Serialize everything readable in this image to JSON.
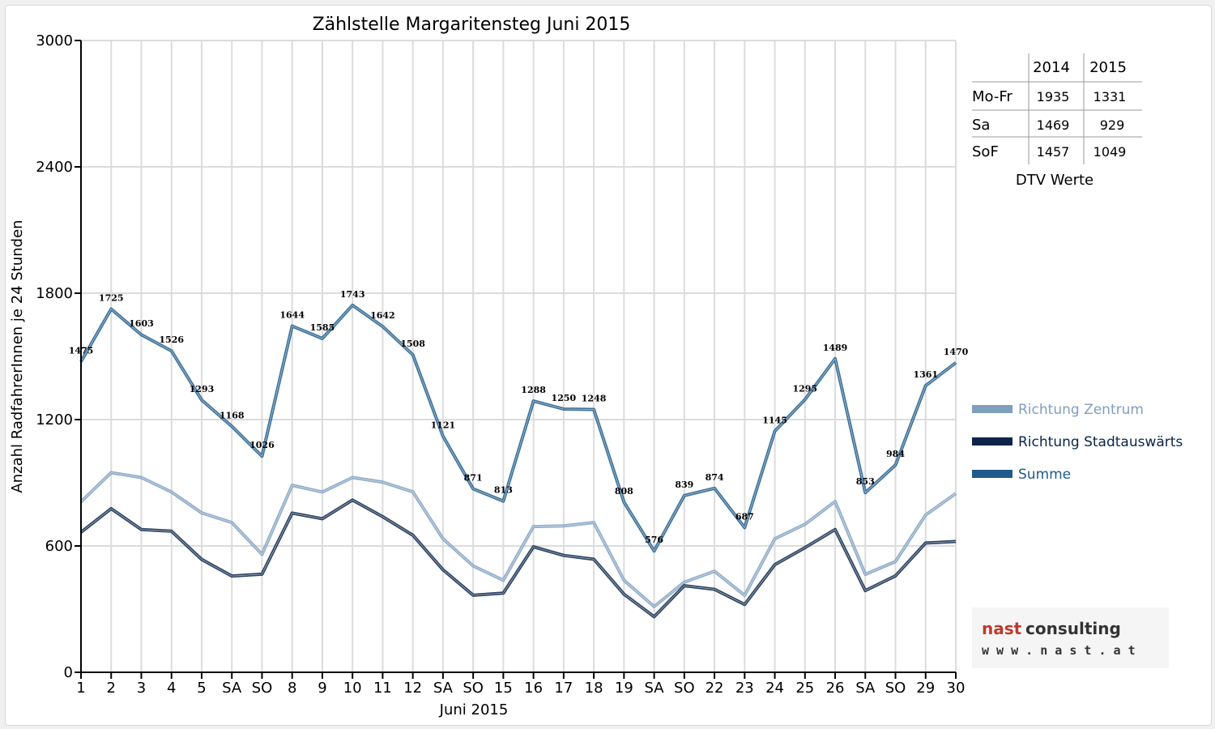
{
  "chart_data": {
    "type": "line",
    "title": "Zählstelle Margaritensteg Juni 2015",
    "xlabel": "Juni 2015",
    "ylabel": "Anzahl RadfahrerInnen je 24 Stunden",
    "ylim": [
      0,
      3000
    ],
    "y_ticks": [
      "0",
      "600",
      "1200",
      "1800",
      "2400",
      "3000"
    ],
    "grid": true,
    "legend_position": "right",
    "categories": [
      "1",
      "2",
      "3",
      "4",
      "5",
      "SA",
      "SO",
      "8",
      "9",
      "10",
      "11",
      "12",
      "SA",
      "SO",
      "15",
      "16",
      "17",
      "18",
      "19",
      "SA",
      "SO",
      "22",
      "23",
      "24",
      "25",
      "26",
      "SA",
      "SO",
      "29",
      "30"
    ],
    "category_colors": {
      "SO": "#ff0000",
      "4": "#ff0000"
    },
    "series": [
      {
        "name": "Richtung Zentrum",
        "color": "#7f9fbf",
        "values": [
          810,
          948,
          925,
          856,
          757,
          711,
          560,
          888,
          856,
          925,
          903,
          857,
          634,
          505,
          437,
          692,
          695,
          711,
          437,
          312,
          428,
          480,
          365,
          634,
          703,
          811,
          465,
          526,
          747,
          849
        ]
      },
      {
        "name": "Richtung Stadtauswärts",
        "color": "#0a2548",
        "values": [
          665,
          777,
          678,
          670,
          536,
          457,
          466,
          756,
          729,
          818,
          739,
          651,
          487,
          366,
          376,
          596,
          555,
          537,
          371,
          264,
          411,
          394,
          322,
          511,
          592,
          678,
          388,
          458,
          614,
          621
        ]
      },
      {
        "name": "Summe",
        "color": "#1f5a8a",
        "values": [
          1475,
          1725,
          1603,
          1526,
          1293,
          1168,
          1026,
          1644,
          1585,
          1743,
          1642,
          1508,
          1121,
          871,
          813,
          1288,
          1250,
          1248,
          808,
          576,
          839,
          874,
          687,
          1145,
          1295,
          1489,
          853,
          984,
          1361,
          1470
        ],
        "data_labels": true
      }
    ]
  },
  "table": {
    "header": [
      "",
      "2014",
      "2015"
    ],
    "rows": [
      [
        "Mo-Fr",
        "1935",
        "1331"
      ],
      [
        "Sa",
        "1469",
        "929"
      ],
      [
        "SoF",
        "1457",
        "1049"
      ]
    ],
    "caption": "DTV Werte"
  },
  "logo": {
    "name": "nast consulting",
    "url": "w w w . n a s t . a t"
  }
}
